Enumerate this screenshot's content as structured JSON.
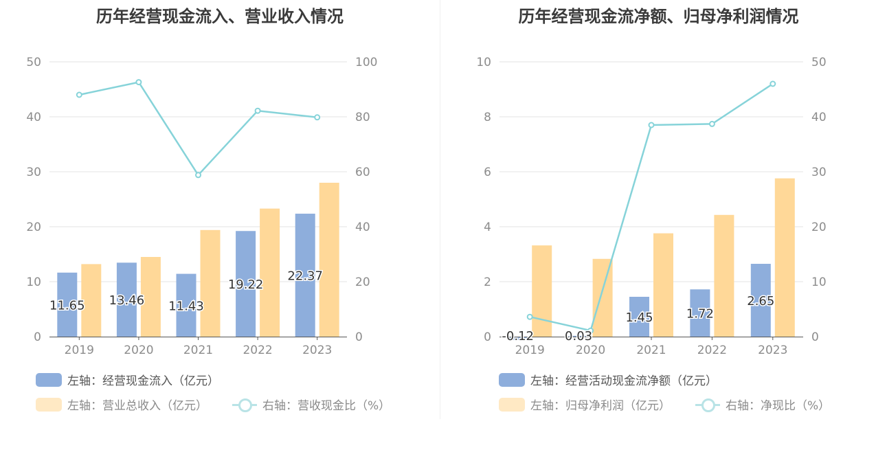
{
  "chart_data": [
    {
      "type": "bar",
      "title": "历年经营现金流入、营业收入情况",
      "categories": [
        "2019",
        "2020",
        "2021",
        "2022",
        "2023"
      ],
      "left_axis": {
        "ylim": [
          0,
          50
        ],
        "ticks": [
          "0",
          "10",
          "20",
          "30",
          "40",
          "50"
        ]
      },
      "right_axis": {
        "ylim": [
          0,
          100
        ],
        "ticks": [
          "0",
          "20",
          "40",
          "60",
          "80",
          "100"
        ]
      },
      "grid": true,
      "legend_position": "bottom-left",
      "series": [
        {
          "name": "左轴：经营现金流入（亿元）",
          "type": "bar",
          "axis": "left",
          "color": "#8eaedc",
          "values": [
            11.65,
            13.46,
            11.43,
            19.22,
            22.37
          ],
          "labels": [
            "11.65",
            "13.46",
            "11.43",
            "19.22",
            "22.37"
          ]
        },
        {
          "name": "左轴：营业总收入（亿元）",
          "type": "bar",
          "axis": "left",
          "color": "#ffd898",
          "values": [
            13.2,
            14.5,
            19.4,
            23.3,
            28.0
          ]
        },
        {
          "name": "右轴：营收现金比（%）",
          "type": "line",
          "axis": "right",
          "color": "#86d3d9",
          "values": [
            88.0,
            92.6,
            58.8,
            82.2,
            79.8
          ]
        }
      ]
    },
    {
      "type": "bar",
      "title": "历年经营现金流净额、归母净利润情况",
      "categories": [
        "2019",
        "2020",
        "2021",
        "2022",
        "2023"
      ],
      "left_axis": {
        "ylim": [
          0,
          10
        ],
        "ticks": [
          "0",
          "2",
          "4",
          "6",
          "8",
          "10"
        ]
      },
      "right_axis": {
        "ylim": [
          0,
          50
        ],
        "ticks": [
          "0",
          "10",
          "20",
          "30",
          "40",
          "50"
        ]
      },
      "grid": true,
      "legend_position": "bottom-left",
      "series": [
        {
          "name": "左轴：经营活动现金流净额（亿元）",
          "type": "bar",
          "axis": "left",
          "color": "#8eaedc",
          "values": [
            -0.12,
            0.03,
            1.45,
            1.72,
            2.65
          ],
          "labels": [
            "-0.12",
            "0.03",
            "1.45",
            "1.72",
            "2.65"
          ]
        },
        {
          "name": "左轴：归母净利润（亿元）",
          "type": "bar",
          "axis": "left",
          "color": "#ffd898",
          "values": [
            3.32,
            2.83,
            3.76,
            4.43,
            5.76
          ]
        },
        {
          "name": "右轴：净现比（%）",
          "type": "line",
          "axis": "right",
          "color": "#86d3d9",
          "values": [
            3.6,
            1.1,
            38.5,
            38.7,
            46.0
          ]
        }
      ]
    }
  ]
}
